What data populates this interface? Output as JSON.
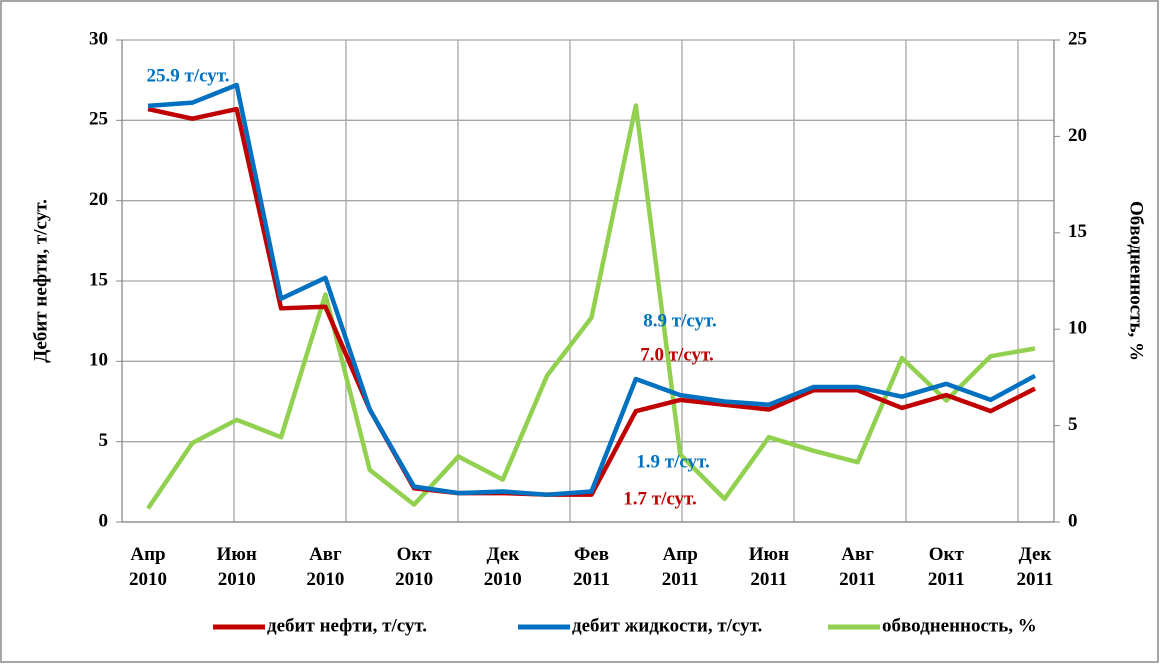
{
  "chart_data": {
    "type": "line",
    "y_label": "Дебит нефти, т/сут.",
    "y2_label": "Обводненность, %",
    "categories": [
      "Апр 2010",
      null,
      "Июн 2010",
      null,
      "Авг 2010",
      null,
      "Окт 2010",
      null,
      "Дек 2010",
      null,
      "Фев 2011",
      null,
      "Апр 2011",
      null,
      "Июн 2011",
      null,
      "Авг 2011",
      null,
      "Окт 2011",
      null,
      "Дек 2011"
    ],
    "series": [
      {
        "name": "дебит нефти, т/сут.",
        "color": "#c00000",
        "values": [
          25.7,
          25.1,
          25.7,
          13.3,
          13.4,
          7.0,
          2.1,
          1.8,
          1.8,
          1.7,
          1.7,
          6.9,
          7.6,
          7.3,
          7.0,
          8.2,
          8.2,
          7.1,
          7.9,
          6.9,
          8.3
        ]
      },
      {
        "name": "дебит жидкости, т/сут.",
        "color": "#0070c0",
        "values": [
          25.9,
          26.1,
          27.2,
          13.9,
          15.2,
          7.0,
          2.2,
          1.8,
          1.9,
          1.7,
          1.9,
          8.9,
          7.9,
          7.5,
          7.3,
          8.4,
          8.4,
          7.8,
          8.6,
          7.6,
          9.1
        ]
      },
      {
        "name": "обводненность, %",
        "color": "#92d050",
        "axis": "y2",
        "values": [
          0.7,
          4.1,
          5.3,
          4.4,
          11.8,
          2.7,
          0.9,
          3.4,
          2.2,
          7.6,
          10.6,
          21.6,
          3.5,
          1.2,
          4.4,
          3.7,
          3.1,
          8.5,
          6.3,
          8.6,
          9.0
        ]
      }
    ],
    "ylim": [
      0,
      30
    ],
    "yticks": [
      0,
      5,
      10,
      15,
      20,
      25,
      30
    ],
    "y2lim": [
      0,
      25
    ],
    "y2ticks": [
      0,
      5,
      10,
      15,
      20,
      25
    ],
    "grid": true,
    "legend": "bottom",
    "annotations": [
      {
        "text": "25.9 т/сут.",
        "color": "#0070c0"
      },
      {
        "text": "8.9 т/сут.",
        "color": "#0070c0"
      },
      {
        "text": "7.0 т/сут.",
        "color": "#c00000"
      },
      {
        "text": "1.9 т/сут.",
        "color": "#0070c0"
      },
      {
        "text": "1.7 т/сут.",
        "color": "#c00000"
      }
    ]
  }
}
